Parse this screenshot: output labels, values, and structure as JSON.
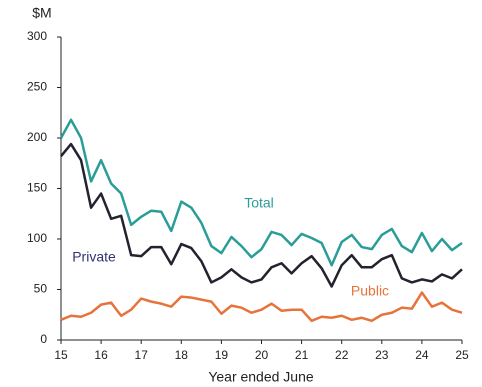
{
  "chart_data": {
    "type": "line",
    "ylabel": "$M",
    "xlabel": "Year ended June",
    "x": [
      15,
      15.25,
      15.5,
      15.75,
      16,
      16.25,
      16.5,
      16.75,
      17,
      17.25,
      17.5,
      17.75,
      18,
      18.25,
      18.5,
      18.75,
      19,
      19.25,
      19.5,
      19.75,
      20,
      20.25,
      20.5,
      20.75,
      21,
      21.25,
      21.5,
      21.75,
      22,
      22.25,
      22.5,
      22.75,
      23,
      23.25,
      23.5,
      23.75,
      24,
      24.25,
      24.5,
      24.75,
      25
    ],
    "series": [
      {
        "name": "Total",
        "color": "#2a9d98",
        "values": [
          200,
          218,
          200,
          157,
          178,
          155,
          145,
          114,
          122,
          128,
          127,
          108,
          137,
          131,
          116,
          93,
          86,
          102,
          93,
          82,
          90,
          107,
          104,
          94,
          105,
          101,
          96,
          74,
          97,
          104,
          92,
          90,
          104,
          110,
          93,
          87,
          106,
          88,
          100,
          89,
          96
        ]
      },
      {
        "name": "Private",
        "color": "#23232f",
        "values": [
          182,
          194,
          178,
          131,
          145,
          120,
          123,
          84,
          83,
          92,
          92,
          75,
          95,
          91,
          78,
          57,
          62,
          70,
          62,
          57,
          60,
          72,
          76,
          66,
          76,
          83,
          71,
          53,
          74,
          84,
          72,
          72,
          80,
          84,
          61,
          57,
          60,
          58,
          65,
          61,
          70
        ]
      },
      {
        "name": "Public",
        "color": "#e8733a",
        "values": [
          20,
          24,
          23,
          27,
          35,
          37,
          24,
          30,
          41,
          38,
          36,
          33,
          43,
          42,
          40,
          38,
          26,
          34,
          32,
          27,
          30,
          36,
          29,
          30,
          30,
          19,
          23,
          22,
          24,
          20,
          22,
          19,
          25,
          27,
          32,
          31,
          47,
          33,
          37,
          30,
          27
        ]
      }
    ],
    "xlim": [
      15,
      25
    ],
    "xticks": [
      15,
      16,
      17,
      18,
      19,
      20,
      21,
      22,
      23,
      24,
      25
    ],
    "ylim": [
      0,
      300
    ],
    "yticks": [
      0,
      50,
      100,
      150,
      200,
      250,
      300
    ],
    "grid": false
  }
}
